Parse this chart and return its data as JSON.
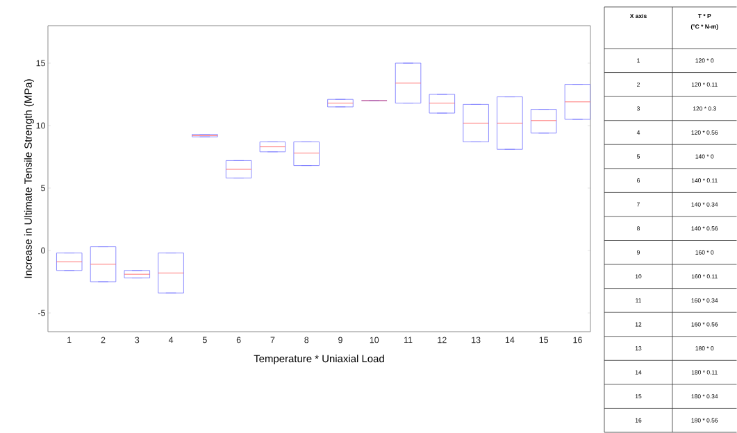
{
  "chart_data": {
    "type": "box",
    "xlabel": "Temperature * Uniaxial Load",
    "ylabel": "Increase in Ultimate Tensile Strength (MPa)",
    "categories": [
      "1",
      "2",
      "3",
      "4",
      "5",
      "6",
      "7",
      "8",
      "9",
      "10",
      "11",
      "12",
      "13",
      "14",
      "15",
      "16"
    ],
    "color": "#7f7fff",
    "boxes": [
      {
        "low": -1.6,
        "q1": -1.6,
        "median": -0.9,
        "q3": -0.2,
        "high": -0.2
      },
      {
        "low": -2.5,
        "q1": -2.5,
        "median": -1.1,
        "q3": 0.3,
        "high": 0.3
      },
      {
        "low": -2.2,
        "q1": -2.2,
        "median": -1.9,
        "q3": -1.6,
        "high": -1.6
      },
      {
        "low": -3.4,
        "q1": -3.4,
        "median": -1.8,
        "q3": -0.2,
        "high": -0.2
      },
      {
        "low": 9.1,
        "q1": 9.1,
        "median": 9.2,
        "q3": 9.3,
        "high": 9.3
      },
      {
        "low": 5.8,
        "q1": 5.8,
        "median": 6.5,
        "q3": 7.2,
        "high": 7.2
      },
      {
        "low": 7.9,
        "q1": 7.9,
        "median": 8.3,
        "q3": 8.7,
        "high": 8.7
      },
      {
        "low": 6.8,
        "q1": 6.8,
        "median": 7.8,
        "q3": 8.7,
        "high": 8.7
      },
      {
        "low": 11.5,
        "q1": 11.5,
        "median": 11.8,
        "q3": 12.1,
        "high": 12.1
      },
      {
        "low": 12.0,
        "q1": 12.0,
        "median": 12.0,
        "q3": 12.0,
        "high": 12.0
      },
      {
        "low": 11.8,
        "q1": 11.8,
        "median": 13.4,
        "q3": 15.0,
        "high": 15.0
      },
      {
        "low": 11.0,
        "q1": 11.0,
        "median": 11.8,
        "q3": 12.5,
        "high": 12.5
      },
      {
        "low": 8.7,
        "q1": 8.7,
        "median": 10.2,
        "q3": 11.7,
        "high": 11.7
      },
      {
        "low": 8.1,
        "q1": 8.1,
        "median": 10.2,
        "q3": 12.3,
        "high": 12.3
      },
      {
        "low": 9.4,
        "q1": 9.4,
        "median": 10.4,
        "q3": 11.3,
        "high": 11.3
      },
      {
        "low": 10.5,
        "q1": 10.5,
        "median": 11.9,
        "q3": 13.3,
        "high": 13.3
      }
    ],
    "ylim": [
      -6.5,
      18
    ],
    "yticks": [
      -5,
      0,
      5,
      10,
      15
    ],
    "annotations": [
      "X axis",
      "T * P",
      "(°C * N-m)",
      "1",
      "120 * 0",
      "2",
      "120 * 0.11",
      "3",
      "120 * 0.3",
      "4",
      "120 * 0.56",
      "5",
      "140 * 0",
      "6",
      "140 * 0.11",
      "7",
      "140 * 0.34",
      "8",
      "140 * 0.56",
      "9",
      "160 * 0",
      "10",
      "160 * 0.11",
      "11",
      "160 * 0.34",
      "12",
      "160 * 0.56",
      "13",
      "180 * 0",
      "14",
      "180 * 0.11",
      "15",
      "180 * 0.34",
      "16",
      "180 * 0.56"
    ]
  }
}
